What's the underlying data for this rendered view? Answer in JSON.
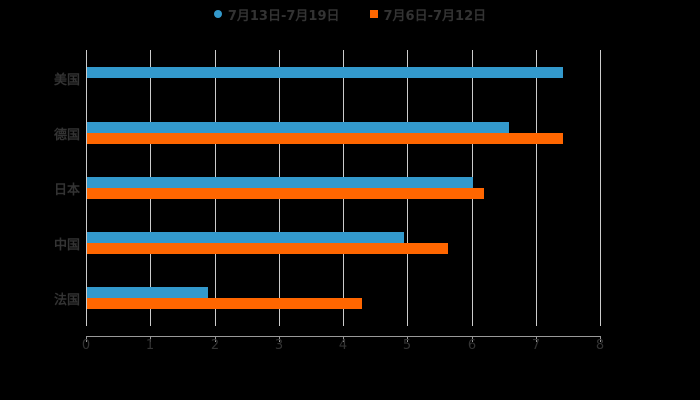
{
  "legend": {
    "items": [
      {
        "label": "7月13日-7月19日",
        "color": "#3399cc",
        "marker": "circle"
      },
      {
        "label": "7月6日-7月12日",
        "color": "#ff6600",
        "marker": "square"
      }
    ]
  },
  "axis": {
    "x_ticks": [
      "0",
      "1",
      "2",
      "3",
      "4",
      "5",
      "6",
      "7",
      "8"
    ],
    "y_categories": [
      "美国",
      "德国",
      "日本",
      "中国",
      "法国"
    ]
  },
  "chart_data": {
    "type": "bar",
    "orientation": "horizontal",
    "title": "",
    "xlabel": "",
    "ylabel": "",
    "categories": [
      "美国",
      "德国",
      "日本",
      "中国",
      "法国"
    ],
    "series": [
      {
        "name": "7月13日-7月19日",
        "color": "#3399cc",
        "values": [
          7.41,
          6.57,
          6.0,
          4.93,
          1.88
        ]
      },
      {
        "name": "7月6日-7月12日",
        "color": "#ff6600",
        "values": [
          null,
          7.41,
          6.18,
          5.62,
          4.28
        ]
      }
    ],
    "xlim": [
      0,
      8
    ],
    "x_ticks": [
      0,
      1,
      2,
      3,
      4,
      5,
      6,
      7,
      8
    ],
    "grid": "vertical",
    "legend_position": "top"
  }
}
